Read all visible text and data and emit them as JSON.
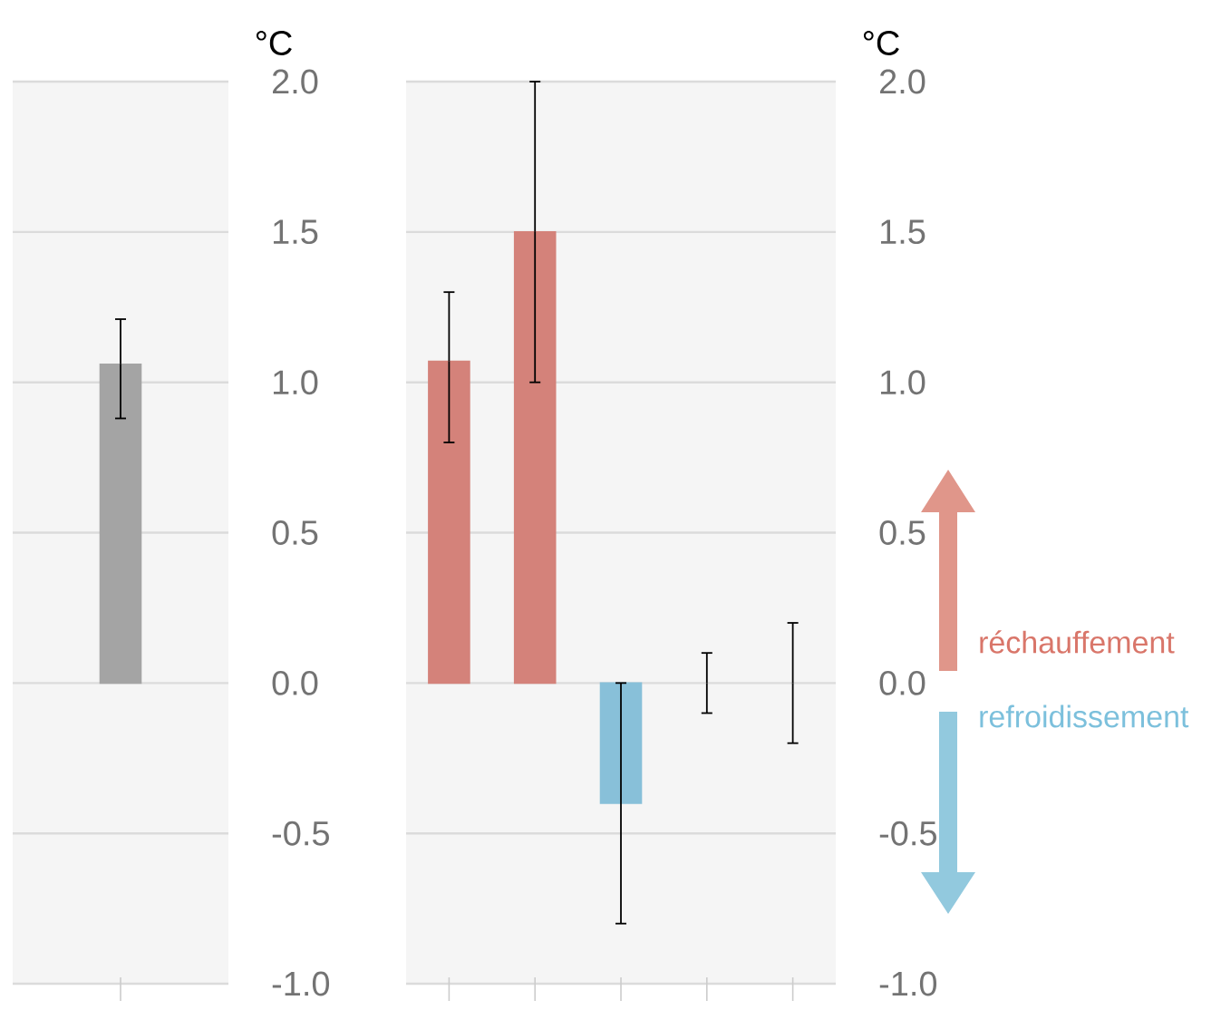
{
  "chart_data": [
    {
      "type": "bar",
      "ylabel": "°C",
      "categories": [
        null
      ],
      "values": [
        1.06
      ],
      "colors": [
        "#a4a4a4"
      ],
      "errors": [
        [
          0.88,
          1.21
        ]
      ],
      "ylim": [
        -1.0,
        2.0
      ],
      "yticks": [
        {
          "value": -1.0,
          "label": "-1.0"
        },
        {
          "value": -0.5,
          "label": "-0.5"
        },
        {
          "value": 0.0,
          "label": "0.0"
        },
        {
          "value": 0.5,
          "label": "0.5"
        },
        {
          "value": 1.0,
          "label": "1.0"
        },
        {
          "value": 1.5,
          "label": "1.5"
        },
        {
          "value": 2.0,
          "label": "2.0"
        }
      ],
      "grid": "y",
      "tick_labels": "y"
    },
    {
      "type": "bar",
      "ylabel": "°C",
      "categories": [
        null,
        null,
        null,
        null,
        null
      ],
      "values": [
        1.07,
        1.5,
        -0.4,
        0,
        0
      ],
      "colors": [
        "#d4827a",
        "#d4827a",
        "#88c0d9",
        "#c8c8c8",
        "#c8c8c8"
      ],
      "errors": [
        [
          0.8,
          1.3
        ],
        [
          1.0,
          2.0
        ],
        [
          -0.8,
          0.0
        ],
        [
          -0.1,
          0.1
        ],
        [
          -0.2,
          0.2
        ]
      ],
      "ylim": [
        -1.0,
        2.0
      ],
      "yticks": [
        {
          "value": -1.0,
          "label": "-1.0"
        },
        {
          "value": -0.5,
          "label": "-0.5"
        },
        {
          "value": 0.0,
          "label": "0.0"
        },
        {
          "value": 0.5,
          "label": "0.5"
        },
        {
          "value": 1.0,
          "label": "1.0"
        },
        {
          "value": 1.5,
          "label": "1.5"
        },
        {
          "value": 2.0,
          "label": "2.0"
        }
      ],
      "grid": "y",
      "tick_labels": "y",
      "annotations": [
        "réchauffement",
        "refroidissement"
      ]
    }
  ]
}
